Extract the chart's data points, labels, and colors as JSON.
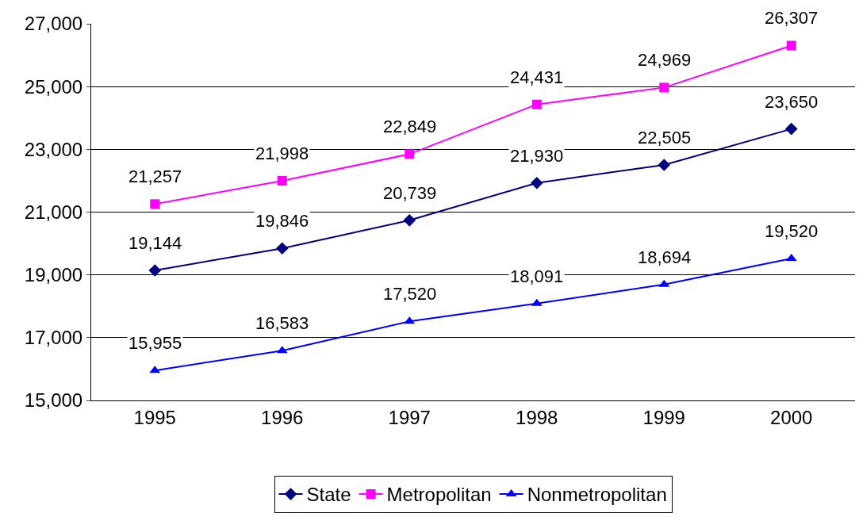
{
  "chart_data": {
    "type": "line",
    "categories": [
      "1995",
      "1996",
      "1997",
      "1998",
      "1999",
      "2000"
    ],
    "series": [
      {
        "name": "State",
        "color": "#000080",
        "marker": "diamond",
        "values": [
          19144,
          19846,
          20739,
          21930,
          22505,
          23650
        ],
        "value_labels": [
          "19,144",
          "19,846",
          "20,739",
          "21,930",
          "22,505",
          "23,650"
        ]
      },
      {
        "name": "Metropolitan",
        "color": "#ff00ff",
        "marker": "square",
        "values": [
          21257,
          21998,
          22849,
          24431,
          24969,
          26307
        ],
        "value_labels": [
          "21,257",
          "21,998",
          "22,849",
          "24,431",
          "24,969",
          "26,307"
        ]
      },
      {
        "name": "Nonmetropolitan",
        "color": "#0000ff",
        "marker": "triangle",
        "values": [
          15955,
          16583,
          17520,
          18091,
          18694,
          19520
        ],
        "value_labels": [
          "15,955",
          "16,583",
          "17,520",
          "18,091",
          "18,694",
          "19,520"
        ]
      }
    ],
    "ylim": [
      15000,
      27000
    ],
    "yticks": [
      {
        "value": 15000,
        "label": "15,000"
      },
      {
        "value": 17000,
        "label": "17,000"
      },
      {
        "value": 19000,
        "label": "19,000"
      },
      {
        "value": 21000,
        "label": "21,000"
      },
      {
        "value": 23000,
        "label": "23,000"
      },
      {
        "value": 25000,
        "label": "25,000"
      },
      {
        "value": 27000,
        "label": "27,000"
      }
    ],
    "grid": "y",
    "legend": "bottom",
    "line_style": "solid"
  }
}
